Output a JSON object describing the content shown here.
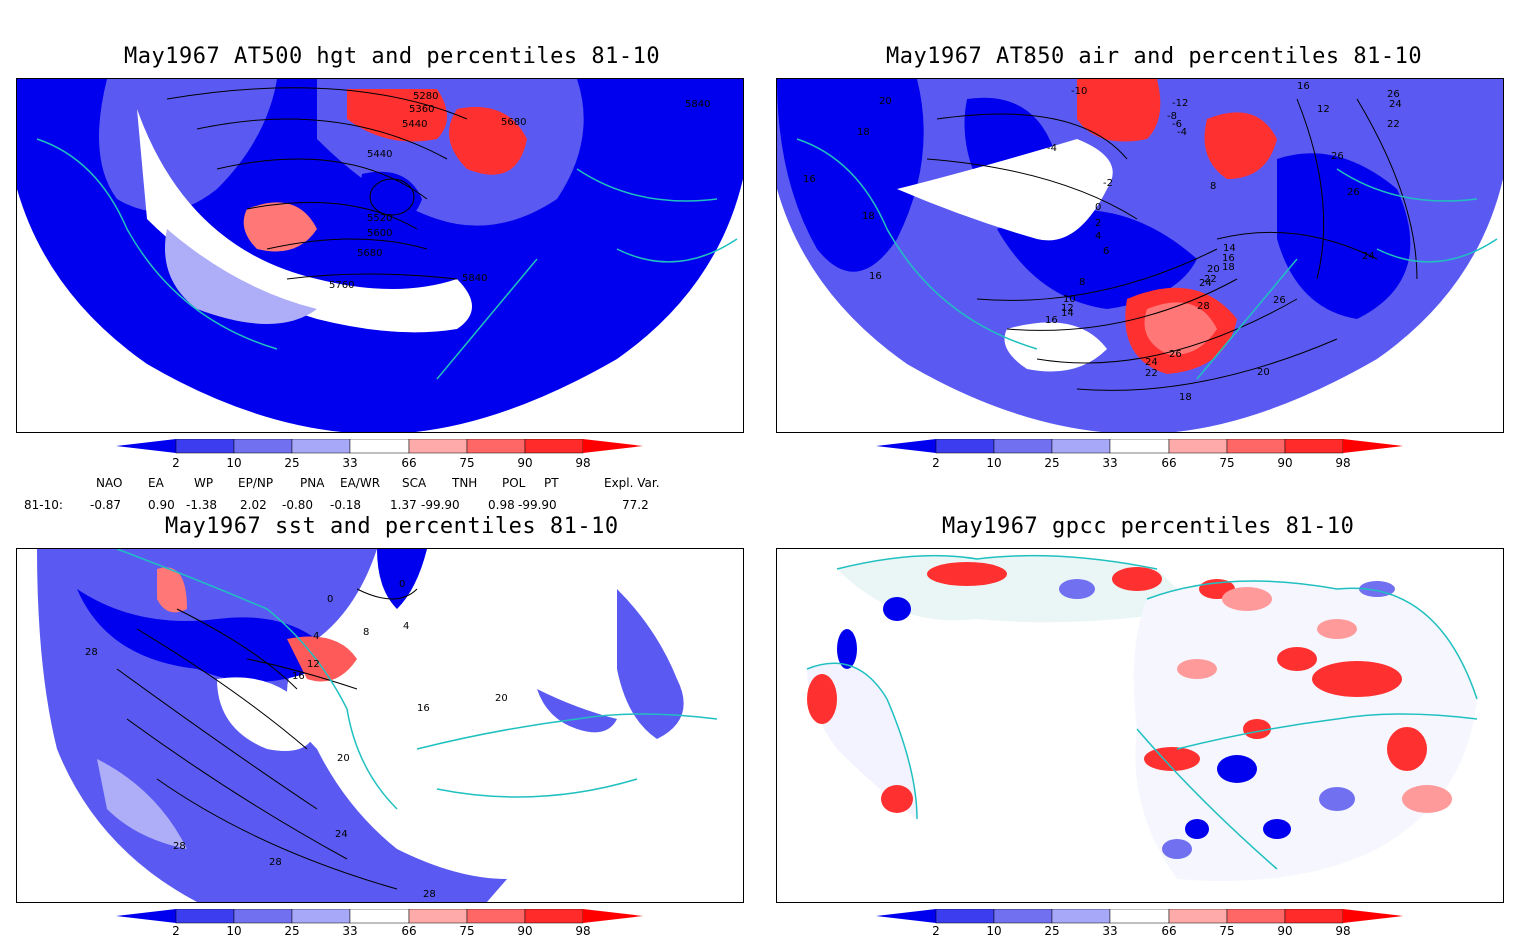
{
  "panels": [
    {
      "title": "May1967 AT500 hgt and percentiles 81-10",
      "contour_labels": [
        "5280",
        "5360",
        "5440",
        "5680",
        "5440",
        "5520",
        "5600",
        "5680",
        "5760",
        "5840",
        "5840"
      ]
    },
    {
      "title": "May1967 AT850 air and percentiles 81-10",
      "contour_labels": [
        "20",
        "-10",
        "-12",
        "-8",
        "-6",
        "-4",
        "16",
        "12",
        "-4",
        "26",
        "24",
        "22",
        "18",
        "-2",
        "8",
        "26",
        "26",
        "16",
        "0",
        "2",
        "4",
        "18",
        "6",
        "14",
        "16",
        "18",
        "20",
        "22",
        "24",
        "24",
        "16",
        "8",
        "10",
        "12",
        "14",
        "16",
        "28",
        "26",
        "24",
        "22",
        "26",
        "20",
        "18"
      ]
    },
    {
      "title": "May1967 sst and percentiles 81-10",
      "contour_labels": [
        "0",
        "0",
        "4",
        "8",
        "4",
        "12",
        "16",
        "16",
        "20",
        "28",
        "20",
        "24",
        "28",
        "28",
        "28"
      ]
    },
    {
      "title": "May1967 gpcc percentiles 81-10",
      "contour_labels": []
    }
  ],
  "colorbar": {
    "labels": [
      "2",
      "10",
      "25",
      "33",
      "66",
      "75",
      "90",
      "98"
    ],
    "colors": [
      "#0000ee",
      "#3d3df0",
      "#7070f0",
      "#a8a8f8",
      "#ffffff",
      "#ffaaaa",
      "#ff6666",
      "#ff2a2a",
      "#ff0000"
    ]
  },
  "indices": {
    "headers": [
      "NAO",
      "EA",
      "WP",
      "EP/NP",
      "PNA",
      "EA/WR",
      "SCA",
      "TNH",
      "POL",
      "PT",
      "Expl. Var."
    ],
    "row_label": "81-10:",
    "values": [
      "-0.87",
      "0.90",
      "-1.38",
      "2.02",
      "-0.80",
      "-0.18",
      "1.37",
      "-99.90",
      "0.98",
      "-99.90",
      "77.2"
    ]
  },
  "colors": {
    "coast": "#20c0c0",
    "blue_deep": "#0000ee",
    "blue_mid": "#5a5af2",
    "blue_light": "#aeaef8",
    "red": "#ff3030",
    "red_light": "#ffaaaa"
  }
}
